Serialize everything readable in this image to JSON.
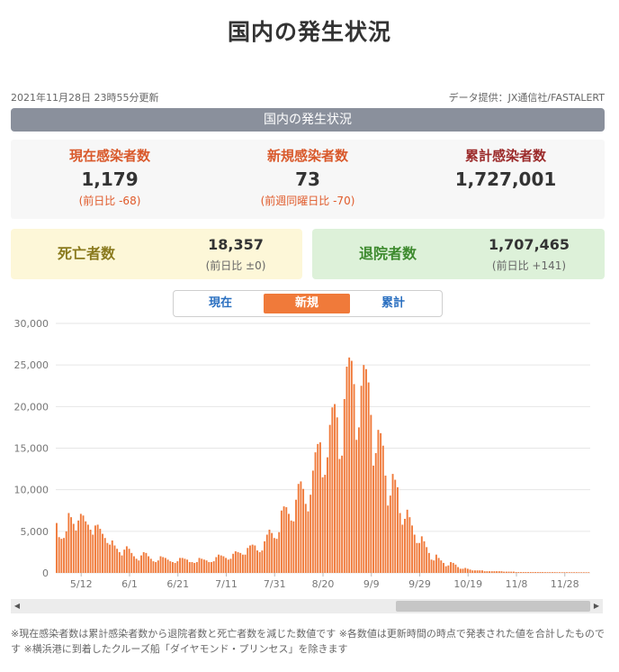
{
  "page": {
    "title": "国内の発生状況",
    "updated": "2021年11月28日 23時55分更新",
    "source": "データ提供：JX通信社/FASTALERT",
    "section_title": "国内の発生状況"
  },
  "stats": {
    "current": {
      "label": "現在感染者数",
      "value": "1,179",
      "sub": "(前日比 -68)",
      "color": "#d9592b"
    },
    "new": {
      "label": "新規感染者数",
      "value": "73",
      "sub": "(前週同曜日比 -70)",
      "color": "#d9592b"
    },
    "total": {
      "label": "累計感染者数",
      "value": "1,727,001",
      "color": "#9b2a2a"
    },
    "deaths": {
      "label": "死亡者数",
      "value": "18,357",
      "sub": "(前日比 ±0)",
      "color": "#8a7a1e"
    },
    "recovered": {
      "label": "退院者数",
      "value": "1,707,465",
      "sub": "(前日比 +141)",
      "color": "#3d8a2e"
    }
  },
  "tabs": [
    {
      "label": "現在",
      "active": false
    },
    {
      "label": "新規",
      "active": true
    },
    {
      "label": "累計",
      "active": false
    }
  ],
  "notes": "※現在感染者数は累計感染者数から退院者数と死亡者数を減じた数値です ※各数値は更新時間の時点で発表された値を合計したものです ※横浜港に到着したクルーズ船「ダイヤモンド・プリンセス」を除きます",
  "chart_data": {
    "type": "bar",
    "bar_color": "#f07a3a",
    "ylim": [
      0,
      30000
    ],
    "y_ticks": [
      "0",
      "5,000",
      "10,000",
      "15,000",
      "20,000",
      "25,000",
      "30,000"
    ],
    "x_tick_labels": [
      "5/12",
      "6/1",
      "6/21",
      "7/11",
      "7/31",
      "8/20",
      "9/9",
      "9/29",
      "10/19",
      "11/8",
      "11/28"
    ],
    "x_tick_index": [
      10,
      30,
      50,
      70,
      90,
      110,
      130,
      150,
      170,
      190,
      210
    ],
    "grid": true,
    "series": [
      {
        "values": [
          6000,
          4300,
          4100,
          4200,
          5000,
          7200,
          6700,
          5900,
          5100,
          6300,
          7100,
          6900,
          6200,
          5800,
          5200,
          4600,
          5700,
          5800,
          5300,
          4700,
          4200,
          3600,
          3400,
          3900,
          3300,
          2900,
          2500,
          2100,
          2800,
          3200,
          2900,
          2400,
          2000,
          1700,
          1500,
          2100,
          2500,
          2400,
          2000,
          1700,
          1400,
          1300,
          1500,
          2000,
          1900,
          1800,
          1600,
          1400,
          1300,
          1200,
          1400,
          1800,
          1800,
          1700,
          1600,
          1300,
          1300,
          1200,
          1300,
          1800,
          1700,
          1600,
          1500,
          1300,
          1300,
          1400,
          1900,
          2200,
          2100,
          2000,
          1800,
          1600,
          1700,
          2300,
          2600,
          2500,
          2400,
          2200,
          2200,
          3000,
          3300,
          3400,
          3300,
          2700,
          2500,
          2700,
          3800,
          4600,
          5200,
          4800,
          4200,
          4100,
          4900,
          7500,
          8000,
          7900,
          7100,
          6300,
          6200,
          8800,
          10700,
          11000,
          10100,
          8300,
          7400,
          9400,
          12300,
          14500,
          15500,
          15700,
          11500,
          11800,
          13900,
          17800,
          19900,
          20300,
          18700,
          13700,
          14100,
          20900,
          24800,
          25900,
          25500,
          22700,
          16000,
          17500,
          22500,
          25000,
          24500,
          22900,
          19000,
          12900,
          14400,
          17200,
          16800,
          15300,
          11700,
          8100,
          9300,
          11900,
          11200,
          10300,
          7200,
          5800,
          6500,
          7600,
          6700,
          5700,
          4600,
          3600,
          3600,
          4400,
          3800,
          3100,
          2400,
          1600,
          1500,
          2200,
          1800,
          1500,
          1200,
          800,
          900,
          1300,
          1200,
          1000,
          700,
          500,
          500,
          600,
          500,
          400,
          300,
          300,
          300,
          300,
          300,
          200,
          200,
          200,
          200,
          200,
          200,
          200,
          200,
          150,
          150,
          150,
          150,
          150,
          100,
          100,
          100,
          100,
          100,
          100,
          100,
          100,
          100,
          100,
          100,
          100,
          90,
          90,
          90,
          90,
          90,
          80,
          80,
          80,
          80,
          80,
          80,
          80,
          80,
          80,
          75,
          75,
          75,
          75,
          75
        ]
      }
    ]
  }
}
